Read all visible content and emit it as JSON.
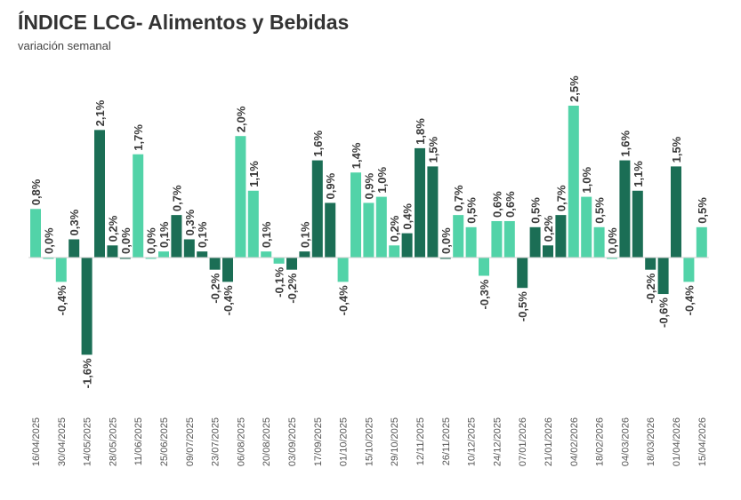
{
  "chart_data": {
    "type": "bar",
    "title": "ÍNDICE LCG- Alimentos y Bebidas",
    "subtitle": "variación semanal",
    "xlabel": "",
    "ylabel": "",
    "value_suffix": "%",
    "decimal_separator": ",",
    "grid": false,
    "colors": {
      "light": "#52d3a8",
      "dark": "#1b6e55"
    },
    "tick_labels": [
      "16/04/2025",
      "30/04/2025",
      "14/05/2025",
      "28/05/2025",
      "11/06/2025",
      "25/06/2025",
      "09/07/2025",
      "23/07/2025",
      "06/08/2025",
      "20/08/2025",
      "03/09/2025",
      "17/09/2025",
      "01/10/2025",
      "15/10/2025",
      "29/10/2025",
      "12/11/2025",
      "26/11/2025",
      "10/12/2025",
      "24/12/2025",
      "07/01/2026",
      "21/01/2026",
      "04/02/2026",
      "18/02/2026",
      "04/03/2026",
      "18/03/2026",
      "01/04/2026",
      "15/04/2026"
    ],
    "values": [
      0.8,
      0.0,
      -0.4,
      0.3,
      -1.6,
      2.1,
      0.2,
      0.0,
      1.7,
      0.0,
      0.1,
      0.7,
      0.3,
      0.1,
      -0.2,
      -0.4,
      2.0,
      1.1,
      0.1,
      -0.1,
      -0.2,
      0.1,
      1.6,
      0.9,
      -0.4,
      1.4,
      0.9,
      1.0,
      0.2,
      0.4,
      1.8,
      1.5,
      0.0,
      0.7,
      0.5,
      -0.3,
      0.6,
      0.6,
      -0.5,
      0.5,
      0.2,
      0.7,
      2.5,
      1.0,
      0.5,
      0.0,
      1.6,
      1.1,
      -0.2,
      -0.6,
      1.5,
      -0.4,
      0.5
    ],
    "bar_color": [
      "light",
      "light",
      "light",
      "dark",
      "dark",
      "dark",
      "dark",
      "dark",
      "light",
      "light",
      "light",
      "dark",
      "dark",
      "dark",
      "dark",
      "dark",
      "light",
      "light",
      "light",
      "light",
      "dark",
      "dark",
      "dark",
      "dark",
      "light",
      "light",
      "light",
      "light",
      "light",
      "dark",
      "dark",
      "dark",
      "dark",
      "light",
      "light",
      "light",
      "light",
      "light",
      "dark",
      "dark",
      "dark",
      "dark",
      "light",
      "light",
      "light",
      "light",
      "dark",
      "dark",
      "dark",
      "dark",
      "dark",
      "light",
      "light"
    ],
    "ylim": [
      -2.5,
      3.0
    ]
  }
}
